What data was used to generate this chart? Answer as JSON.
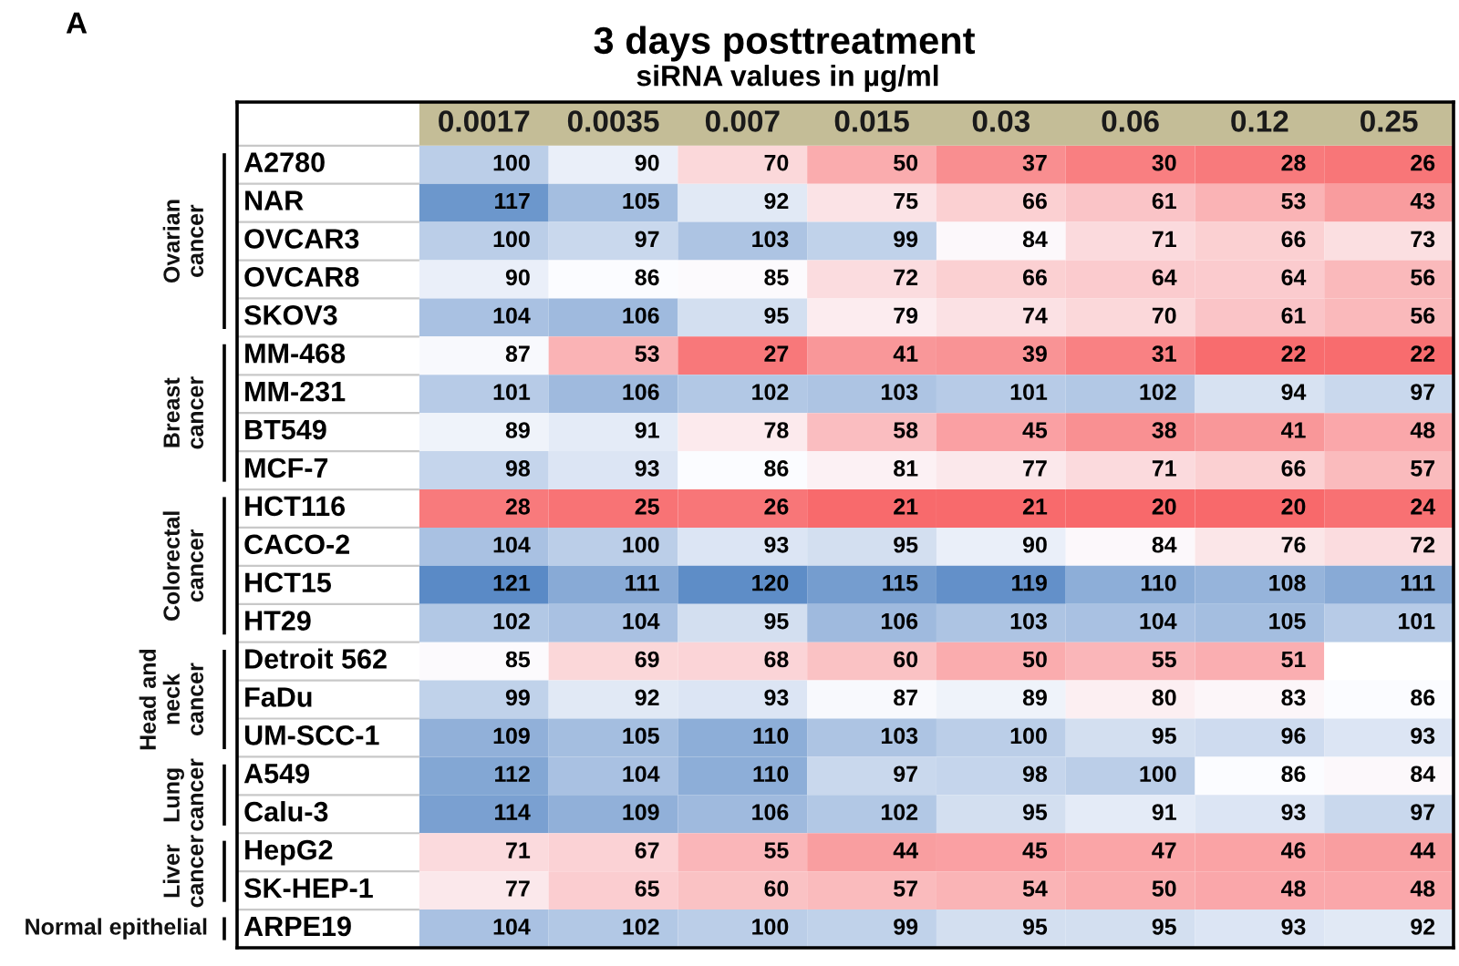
{
  "chart_data": {
    "type": "heatmap",
    "title": "3 days posttreatment",
    "subtitle": "siRNA values in µg/ml",
    "categories": [
      "0.0017",
      "0.0035",
      "0.007",
      "0.015",
      "0.03",
      "0.06",
      "0.12",
      "0.25"
    ],
    "y_categories": [
      "A2780",
      "NAR",
      "OVCAR3",
      "OVCAR8",
      "SKOV3",
      "MM-468",
      "MM-231",
      "BT549",
      "MCF-7",
      "HCT116",
      "CACO-2",
      "HCT15",
      "HT29",
      "Detroit 562",
      "FaDu",
      "UM-SCC-1",
      "A549",
      "Calu-3",
      "HepG2",
      "SK-HEP-1",
      "ARPE19"
    ],
    "cells": [
      [
        100,
        90,
        70,
        50,
        37,
        30,
        28,
        26
      ],
      [
        117,
        105,
        92,
        75,
        66,
        61,
        53,
        43
      ],
      [
        100,
        97,
        103,
        99,
        84,
        71,
        66,
        73
      ],
      [
        90,
        86,
        85,
        72,
        66,
        64,
        64,
        56
      ],
      [
        104,
        106,
        95,
        79,
        74,
        70,
        61,
        56
      ],
      [
        87,
        53,
        27,
        41,
        39,
        31,
        22,
        22
      ],
      [
        101,
        106,
        102,
        103,
        101,
        102,
        94,
        97
      ],
      [
        89,
        91,
        78,
        58,
        45,
        38,
        41,
        48
      ],
      [
        98,
        93,
        86,
        81,
        77,
        71,
        66,
        57
      ],
      [
        28,
        25,
        26,
        21,
        21,
        20,
        20,
        24
      ],
      [
        104,
        100,
        93,
        95,
        90,
        84,
        76,
        72
      ],
      [
        121,
        111,
        120,
        115,
        119,
        110,
        108,
        111
      ],
      [
        102,
        104,
        95,
        106,
        103,
        104,
        105,
        101
      ],
      [
        85,
        69,
        68,
        60,
        50,
        55,
        51,
        null
      ],
      [
        99,
        92,
        93,
        87,
        89,
        80,
        83,
        86
      ],
      [
        109,
        105,
        110,
        103,
        100,
        95,
        96,
        93
      ],
      [
        112,
        104,
        110,
        97,
        98,
        100,
        86,
        84
      ],
      [
        114,
        109,
        106,
        102,
        95,
        91,
        93,
        97
      ],
      [
        71,
        67,
        55,
        44,
        45,
        47,
        46,
        44
      ],
      [
        77,
        65,
        60,
        57,
        54,
        50,
        48,
        48
      ],
      [
        104,
        102,
        100,
        99,
        95,
        95,
        93,
        92
      ]
    ],
    "data_labels": true,
    "annotations": [
      "A",
      "Ovarian\ncancer",
      "Breast\ncancer",
      "Colorectal\ncancer",
      "Head and\nneck\ncancer",
      "Lung\ncancer",
      "Liver\ncancer",
      "Normal epithelial"
    ]
  }
}
